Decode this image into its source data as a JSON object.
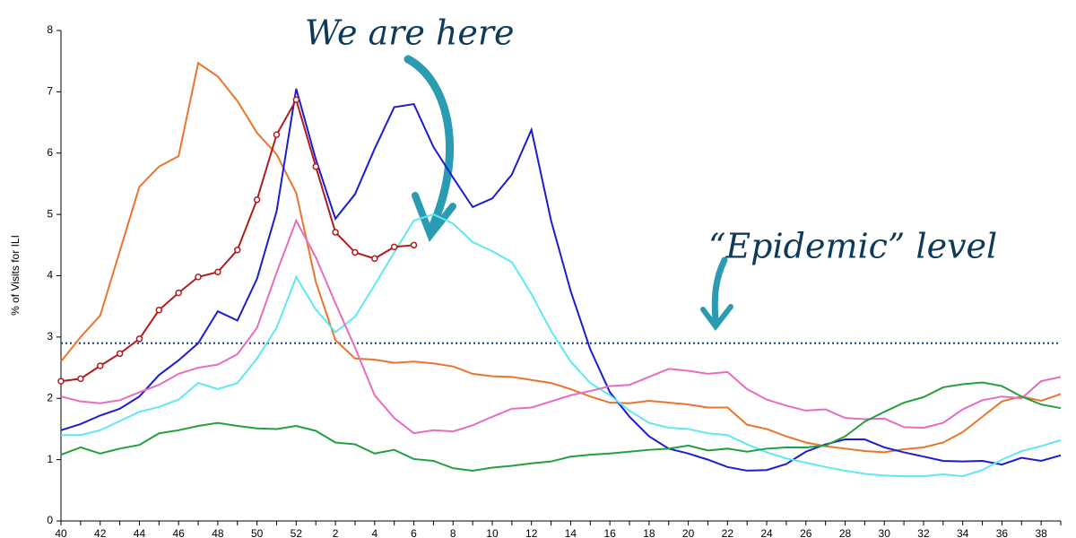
{
  "chart_data": {
    "type": "line",
    "y_label": "% of Visits for ILI",
    "annotations": [
      "We are here",
      "“Epidemic” level"
    ],
    "epidemic_level": 2.9,
    "categories": [
      40,
      null,
      42,
      null,
      44,
      null,
      46,
      null,
      48,
      null,
      50,
      null,
      52,
      null,
      2,
      null,
      4,
      null,
      6,
      null,
      8,
      null,
      10,
      null,
      12,
      null,
      14,
      null,
      16,
      null,
      18,
      null,
      20,
      null,
      22,
      null,
      24,
      null,
      26,
      null,
      28,
      null,
      30,
      null,
      32,
      null,
      34,
      null,
      36,
      null,
      38,
      null
    ],
    "ylim": [
      0,
      8
    ],
    "yticks": [
      0,
      1,
      2,
      3,
      4,
      5,
      6,
      7,
      8
    ],
    "series": [
      {
        "color": "#e8762c",
        "values": [
          2.6,
          3.0,
          3.35,
          4.4,
          5.45,
          5.78,
          5.95,
          7.47,
          7.25,
          6.85,
          6.33,
          5.98,
          5.35,
          3.9,
          2.95,
          2.65,
          2.63,
          2.58,
          2.6,
          2.57,
          2.52,
          2.4,
          2.36,
          2.35,
          2.3,
          2.25,
          2.15,
          2.03,
          1.93,
          1.92,
          1.96,
          1.93,
          1.9,
          1.85,
          1.85,
          1.57,
          1.5,
          1.38,
          1.28,
          1.22,
          1.18,
          1.14,
          1.12,
          1.17,
          1.2,
          1.28,
          1.45,
          1.7,
          1.95,
          2.03,
          1.96,
          2.07
        ]
      },
      {
        "color": "#1c1cd0",
        "values": [
          1.48,
          1.58,
          1.72,
          1.83,
          2.03,
          2.38,
          2.62,
          2.9,
          3.42,
          3.27,
          3.95,
          5.05,
          7.05,
          5.9,
          4.93,
          5.33,
          6.07,
          6.75,
          6.8,
          6.1,
          5.6,
          5.12,
          5.26,
          5.65,
          6.38,
          4.9,
          3.75,
          2.8,
          2.1,
          1.7,
          1.38,
          1.18,
          1.1,
          1.0,
          0.88,
          0.82,
          0.83,
          0.93,
          1.13,
          1.25,
          1.33,
          1.33,
          1.2,
          1.12,
          1.05,
          0.98,
          0.97,
          0.98,
          0.92,
          1.03,
          0.98,
          1.07
        ]
      },
      {
        "color": "#5ee8f0",
        "values": [
          1.4,
          1.4,
          1.48,
          1.63,
          1.78,
          1.86,
          1.98,
          2.25,
          2.15,
          2.25,
          2.65,
          3.15,
          3.98,
          3.45,
          3.08,
          3.33,
          3.85,
          4.38,
          4.9,
          5.0,
          4.85,
          4.55,
          4.4,
          4.22,
          3.7,
          3.1,
          2.6,
          2.25,
          2.05,
          1.8,
          1.6,
          1.52,
          1.5,
          1.43,
          1.4,
          1.25,
          1.12,
          1.02,
          0.95,
          0.88,
          0.82,
          0.77,
          0.74,
          0.73,
          0.73,
          0.76,
          0.73,
          0.83,
          1.0,
          1.14,
          1.22,
          1.32
        ]
      },
      {
        "color": "#e86bc0",
        "values": [
          2.03,
          1.95,
          1.92,
          1.97,
          2.1,
          2.22,
          2.4,
          2.5,
          2.55,
          2.72,
          3.15,
          4.05,
          4.9,
          4.3,
          3.55,
          2.83,
          2.05,
          1.68,
          1.43,
          1.48,
          1.46,
          1.56,
          1.7,
          1.83,
          1.85,
          1.95,
          2.05,
          2.12,
          2.2,
          2.22,
          2.35,
          2.48,
          2.45,
          2.4,
          2.43,
          2.15,
          1.98,
          1.88,
          1.8,
          1.82,
          1.68,
          1.66,
          1.67,
          1.53,
          1.52,
          1.6,
          1.82,
          1.97,
          2.03,
          2.0,
          2.28,
          2.35
        ]
      },
      {
        "color": "#22a040",
        "values": [
          1.08,
          1.2,
          1.1,
          1.18,
          1.24,
          1.43,
          1.48,
          1.55,
          1.6,
          1.55,
          1.51,
          1.5,
          1.55,
          1.47,
          1.28,
          1.25,
          1.1,
          1.16,
          1.01,
          0.98,
          0.86,
          0.82,
          0.87,
          0.9,
          0.94,
          0.97,
          1.05,
          1.08,
          1.1,
          1.13,
          1.16,
          1.18,
          1.23,
          1.15,
          1.18,
          1.13,
          1.18,
          1.2,
          1.2,
          1.23,
          1.38,
          1.62,
          1.78,
          1.93,
          2.02,
          2.18,
          2.23,
          2.26,
          2.2,
          2.03,
          1.9,
          1.84
        ]
      },
      {
        "color": "#b01c1c",
        "markers": true,
        "values": [
          2.28,
          2.32,
          2.53,
          2.73,
          2.97,
          3.44,
          3.72,
          3.98,
          4.06,
          4.42,
          5.24,
          6.3,
          6.87,
          5.78,
          4.71,
          4.38,
          4.28,
          4.47,
          4.5,
          null,
          null,
          null,
          null,
          null,
          null,
          null,
          null,
          null,
          null,
          null,
          null,
          null,
          null,
          null,
          null,
          null,
          null,
          null,
          null,
          null,
          null,
          null,
          null,
          null,
          null,
          null,
          null,
          null,
          null,
          null,
          null,
          null
        ]
      }
    ]
  }
}
